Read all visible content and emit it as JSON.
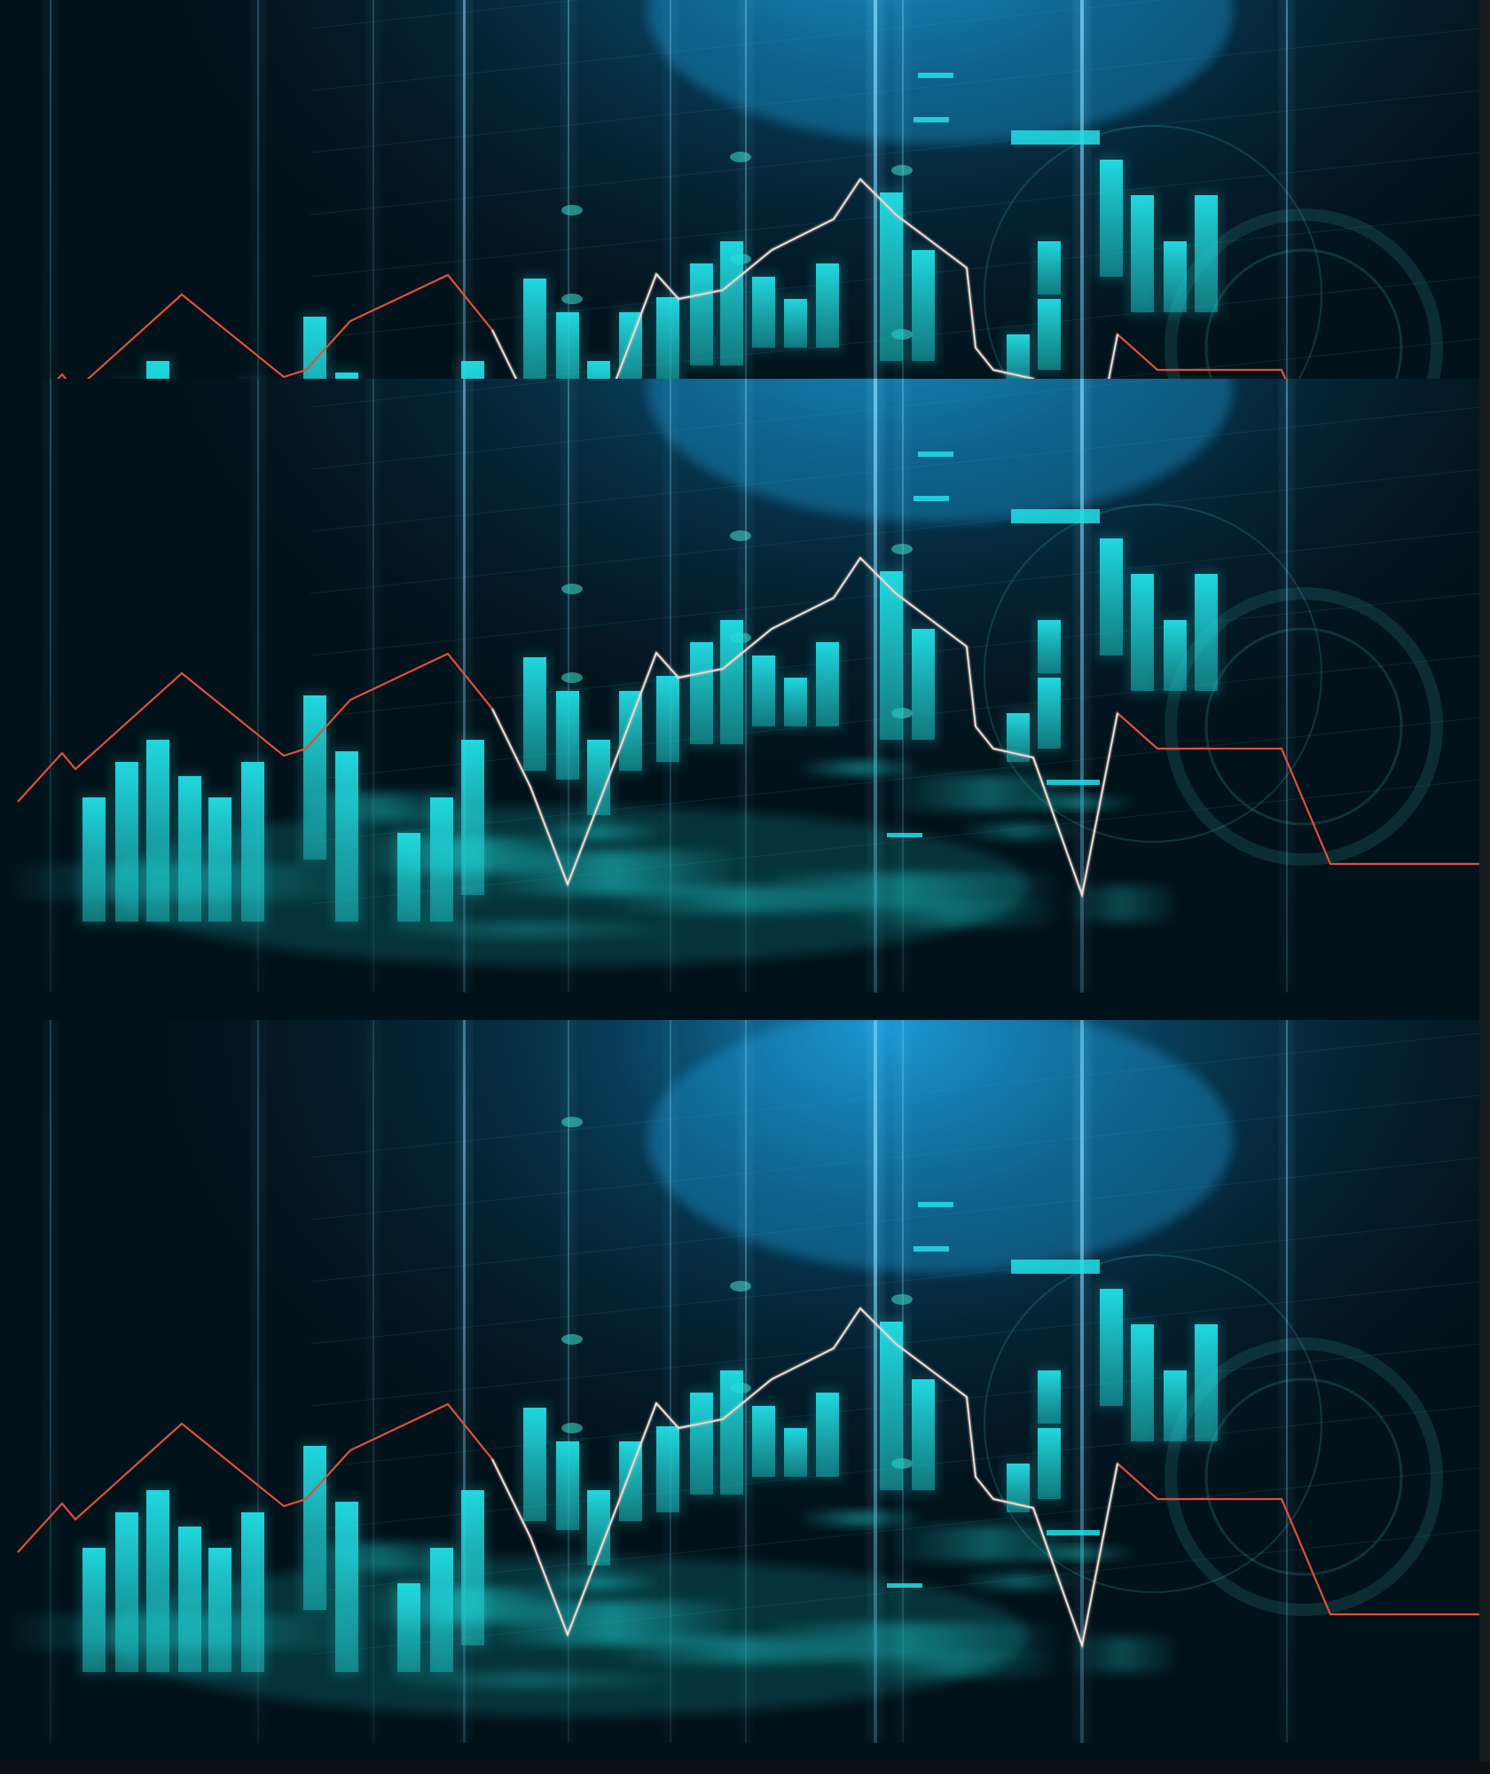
{
  "image": {
    "palette": {
      "background_dark": "#02121a",
      "glow_blue": "#1fa7e8",
      "bar_cyan": "#22e0e8",
      "bar_teal": "#1ec9c9",
      "line_red": "#e0503a",
      "line_white": "#e8f4f2"
    }
  }
}
